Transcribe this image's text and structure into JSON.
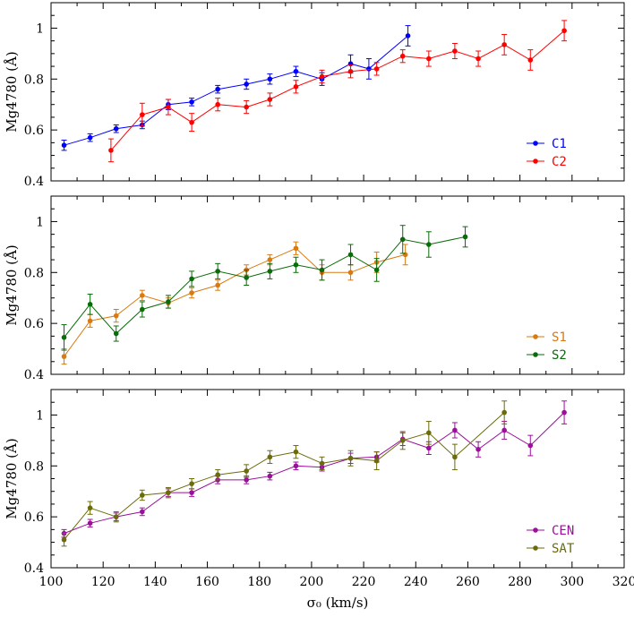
{
  "chart_data": [
    {
      "type": "line",
      "ylabel": "Mg4780 (Å)",
      "xlabel": "",
      "xlim": [
        100,
        320
      ],
      "ylim": [
        0.4,
        1.1
      ],
      "xticks": [
        100,
        120,
        140,
        160,
        180,
        200,
        220,
        240,
        260,
        280,
        300,
        320
      ],
      "yticks": [
        0.4,
        0.6,
        0.8,
        1.0
      ],
      "ytick_labels": [
        "0.4",
        "0.6",
        "0.8",
        "1"
      ],
      "show_x_tick_labels": false,
      "grid": false,
      "legend_position": "bottom-right",
      "series": [
        {
          "name": "C1",
          "color": "#0000ff",
          "x": [
            105,
            115,
            125,
            135,
            145,
            154,
            164,
            175,
            184,
            194,
            204,
            215,
            222,
            237
          ],
          "y": [
            0.54,
            0.57,
            0.605,
            0.62,
            0.7,
            0.71,
            0.76,
            0.78,
            0.8,
            0.83,
            0.8,
            0.86,
            0.84,
            0.97
          ],
          "err": [
            0.02,
            0.015,
            0.015,
            0.015,
            0.02,
            0.015,
            0.015,
            0.02,
            0.02,
            0.02,
            0.025,
            0.035,
            0.04,
            0.04
          ]
        },
        {
          "name": "C2",
          "color": "#ff0000",
          "x": [
            123,
            135,
            145,
            154,
            164,
            175,
            184,
            194,
            204,
            215,
            225,
            235,
            245,
            255,
            264,
            274,
            284,
            297
          ],
          "y": [
            0.52,
            0.66,
            0.69,
            0.63,
            0.7,
            0.69,
            0.72,
            0.77,
            0.81,
            0.83,
            0.84,
            0.89,
            0.88,
            0.91,
            0.88,
            0.935,
            0.875,
            0.99
          ],
          "err": [
            0.045,
            0.045,
            0.03,
            0.035,
            0.025,
            0.025,
            0.025,
            0.025,
            0.025,
            0.025,
            0.025,
            0.025,
            0.03,
            0.03,
            0.03,
            0.04,
            0.04,
            0.04
          ]
        }
      ]
    },
    {
      "type": "line",
      "ylabel": "Mg4780 (Å)",
      "xlabel": "",
      "xlim": [
        100,
        320
      ],
      "ylim": [
        0.4,
        1.1
      ],
      "xticks": [
        100,
        120,
        140,
        160,
        180,
        200,
        220,
        240,
        260,
        280,
        300,
        320
      ],
      "yticks": [
        0.4,
        0.6,
        0.8,
        1.0
      ],
      "ytick_labels": [
        "0.4",
        "0.6",
        "0.8",
        "1"
      ],
      "show_x_tick_labels": false,
      "grid": false,
      "legend_position": "bottom-right",
      "series": [
        {
          "name": "S1",
          "color": "#d97a10",
          "x": [
            105,
            115,
            125,
            135,
            145,
            154,
            164,
            175,
            184,
            194,
            204,
            215,
            225,
            236
          ],
          "y": [
            0.47,
            0.61,
            0.63,
            0.71,
            0.68,
            0.72,
            0.75,
            0.81,
            0.85,
            0.895,
            0.8,
            0.8,
            0.84,
            0.87
          ],
          "err": [
            0.03,
            0.025,
            0.025,
            0.02,
            0.02,
            0.02,
            0.02,
            0.02,
            0.02,
            0.025,
            0.03,
            0.03,
            0.04,
            0.04
          ]
        },
        {
          "name": "S2",
          "color": "#0a6b0a",
          "x": [
            105,
            115,
            125,
            135,
            145,
            154,
            164,
            175,
            184,
            194,
            204,
            215,
            225,
            235,
            245,
            259
          ],
          "y": [
            0.545,
            0.675,
            0.56,
            0.655,
            0.685,
            0.775,
            0.805,
            0.78,
            0.805,
            0.83,
            0.81,
            0.87,
            0.81,
            0.93,
            0.91,
            0.94
          ],
          "err": [
            0.05,
            0.04,
            0.03,
            0.03,
            0.025,
            0.03,
            0.03,
            0.03,
            0.03,
            0.03,
            0.04,
            0.04,
            0.045,
            0.055,
            0.05,
            0.04
          ]
        }
      ]
    },
    {
      "type": "line",
      "ylabel": "Mg4780 (Å)",
      "xlabel": "σ₀ (km/s)",
      "xlim": [
        100,
        320
      ],
      "ylim": [
        0.4,
        1.1
      ],
      "xticks": [
        100,
        120,
        140,
        160,
        180,
        200,
        220,
        240,
        260,
        280,
        300,
        320
      ],
      "yticks": [
        0.4,
        0.6,
        0.8,
        1.0
      ],
      "ytick_labels": [
        "0.4",
        "0.6",
        "0.8",
        "1"
      ],
      "show_x_tick_labels": true,
      "grid": false,
      "legend_position": "bottom-right",
      "series": [
        {
          "name": "CEN",
          "color": "#9b109b",
          "x": [
            105,
            115,
            125,
            135,
            145,
            154,
            164,
            175,
            184,
            194,
            204,
            215,
            225,
            235,
            245,
            255,
            264,
            274,
            284,
            297
          ],
          "y": [
            0.535,
            0.575,
            0.6,
            0.62,
            0.695,
            0.695,
            0.745,
            0.745,
            0.76,
            0.8,
            0.795,
            0.83,
            0.835,
            0.905,
            0.87,
            0.94,
            0.865,
            0.94,
            0.88,
            1.01
          ],
          "err": [
            0.015,
            0.015,
            0.015,
            0.015,
            0.015,
            0.015,
            0.015,
            0.015,
            0.015,
            0.015,
            0.015,
            0.02,
            0.02,
            0.025,
            0.025,
            0.03,
            0.03,
            0.035,
            0.04,
            0.045
          ]
        },
        {
          "name": "SAT",
          "color": "#6b6b0a",
          "x": [
            105,
            115,
            125,
            135,
            145,
            154,
            164,
            175,
            184,
            194,
            204,
            215,
            225,
            235,
            245,
            255,
            274
          ],
          "y": [
            0.51,
            0.635,
            0.6,
            0.685,
            0.695,
            0.73,
            0.765,
            0.78,
            0.835,
            0.855,
            0.81,
            0.83,
            0.82,
            0.9,
            0.93,
            0.835,
            1.01
          ],
          "err": [
            0.025,
            0.025,
            0.02,
            0.02,
            0.02,
            0.02,
            0.02,
            0.025,
            0.025,
            0.025,
            0.025,
            0.03,
            0.035,
            0.035,
            0.045,
            0.05,
            0.045
          ]
        }
      ]
    }
  ]
}
